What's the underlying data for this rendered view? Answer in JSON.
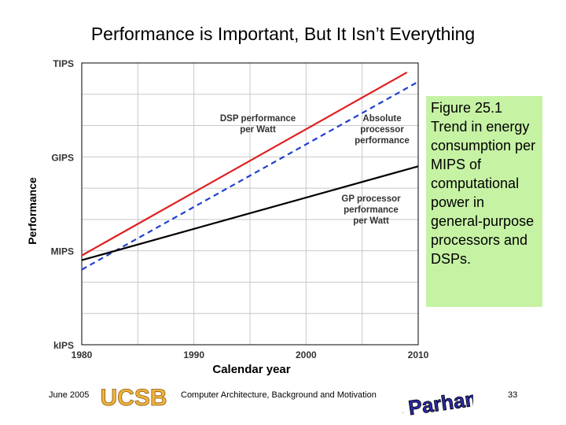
{
  "slide": {
    "title": "Performance is Important, But It Isn’t Everything",
    "callout": "Figure 25.1 Trend in energy consumption per MIPS of computational power in general-purpose processors and DSPs."
  },
  "footer": {
    "date": "June 2005",
    "logo_text": "UCSB",
    "course": "Computer Architecture, Background and Motivation",
    "author_signature": "B Parhami",
    "page": "33"
  },
  "colors": {
    "dsp": "#e02020",
    "absolute": "#2040d0",
    "gp": "#000000",
    "grid": "#c8c8c8",
    "callout_bg": "#c6f2a4"
  },
  "chart_data": {
    "type": "line",
    "title": "",
    "xlabel": "Calendar year",
    "ylabel": "Performance",
    "xlim": [
      1980,
      2010
    ],
    "ylim": [
      0,
      3
    ],
    "x_ticks": [
      1980,
      1990,
      2000,
      2010
    ],
    "y_ticks": [
      {
        "value": 0,
        "label": "kIPS"
      },
      {
        "value": 1,
        "label": "MIPS"
      },
      {
        "value": 2,
        "label": "GIPS"
      },
      {
        "value": 3,
        "label": "TIPS"
      }
    ],
    "grid": true,
    "series": [
      {
        "name": "DSP performance per Watt",
        "label_lines": [
          "DSP performance",
          "per Watt"
        ],
        "style": "solid",
        "color": "#e02020",
        "x": [
          1980,
          2009
        ],
        "y": [
          0.95,
          2.9
        ]
      },
      {
        "name": "Absolute processor performance",
        "label_lines": [
          "Absolute",
          "processor",
          "performance"
        ],
        "style": "dashed",
        "color": "#2040d0",
        "x": [
          1980,
          2010
        ],
        "y": [
          0.8,
          2.8
        ]
      },
      {
        "name": "GP processor performance per Watt",
        "label_lines": [
          "GP processor",
          "performance",
          "per Watt"
        ],
        "style": "solid",
        "color": "#000000",
        "x": [
          1980,
          2010
        ],
        "y": [
          0.9,
          1.9
        ]
      }
    ]
  }
}
